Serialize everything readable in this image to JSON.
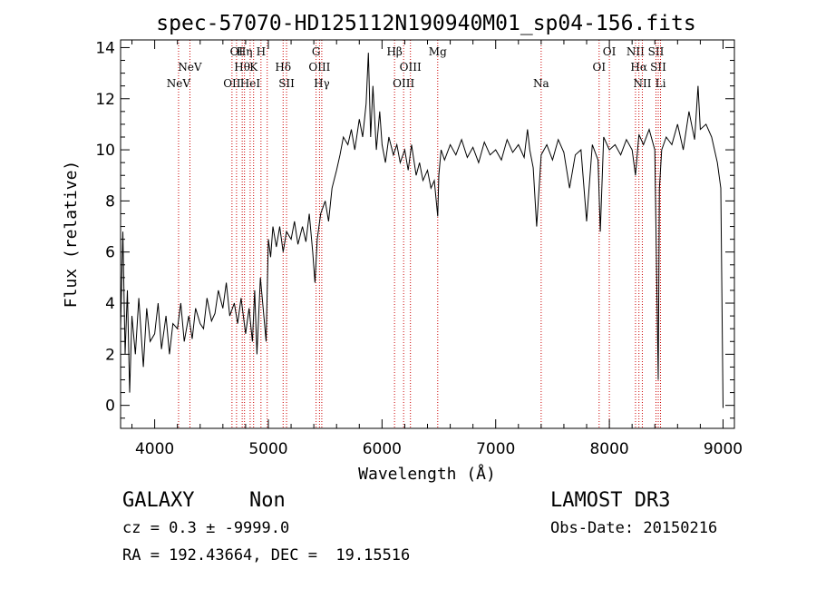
{
  "chart_data": {
    "type": "line",
    "title": "spec-57070-HD125112N190940M01_sp04-156.fits",
    "xlabel": "Wavelength (Å)",
    "ylabel": "Flux (relative)",
    "xlim": [
      3700,
      9100
    ],
    "ylim": [
      -0.9,
      14.3
    ],
    "x_ticks": [
      4000,
      5000,
      6000,
      7000,
      8000,
      9000
    ],
    "y_ticks": [
      0,
      2,
      4,
      6,
      8,
      10,
      12,
      14
    ],
    "grid": false,
    "line_color": "#000000",
    "marker_color": "#cc0000",
    "series": [
      {
        "x": [
          3700,
          3720,
          3740,
          3760,
          3780,
          3800,
          3830,
          3860,
          3900,
          3930,
          3960,
          4000,
          4030,
          4060,
          4100,
          4130,
          4160,
          4200,
          4230,
          4260,
          4300,
          4330,
          4360,
          4400,
          4430,
          4460,
          4500,
          4530,
          4560,
          4600,
          4630,
          4660,
          4700,
          4730,
          4760,
          4800,
          4830,
          4860,
          4880,
          4900,
          4930,
          4960,
          4980,
          5000,
          5020,
          5040,
          5070,
          5100,
          5130,
          5160,
          5200,
          5230,
          5260,
          5300,
          5330,
          5360,
          5390,
          5410,
          5430,
          5460,
          5500,
          5530,
          5560,
          5600,
          5630,
          5660,
          5700,
          5730,
          5760,
          5800,
          5830,
          5860,
          5880,
          5900,
          5920,
          5950,
          5980,
          6000,
          6030,
          6060,
          6100,
          6130,
          6160,
          6200,
          6230,
          6260,
          6300,
          6330,
          6360,
          6400,
          6430,
          6460,
          6490,
          6500,
          6520,
          6550,
          6600,
          6650,
          6700,
          6750,
          6800,
          6850,
          6900,
          6950,
          7000,
          7050,
          7100,
          7150,
          7200,
          7250,
          7280,
          7300,
          7330,
          7360,
          7400,
          7450,
          7500,
          7550,
          7600,
          7650,
          7700,
          7750,
          7800,
          7850,
          7900,
          7920,
          7950,
          8000,
          8050,
          8100,
          8150,
          8200,
          8230,
          8260,
          8300,
          8350,
          8400,
          8430,
          8440,
          8460,
          8500,
          8550,
          8600,
          8650,
          8700,
          8750,
          8780,
          8800,
          8850,
          8900,
          8950,
          8980,
          9000
        ],
        "y": [
          3.0,
          6.8,
          2.0,
          4.5,
          0.5,
          3.5,
          2.0,
          4.2,
          1.5,
          3.8,
          2.5,
          2.8,
          4.0,
          2.2,
          3.5,
          2.0,
          3.2,
          3.0,
          4.0,
          2.5,
          3.5,
          2.6,
          3.8,
          3.2,
          3.0,
          4.2,
          3.3,
          3.6,
          4.5,
          3.8,
          4.8,
          3.5,
          4.0,
          3.2,
          4.2,
          2.8,
          3.8,
          2.5,
          4.5,
          2.0,
          5.0,
          3.5,
          2.5,
          6.5,
          5.8,
          7.0,
          6.2,
          7.0,
          6.0,
          6.8,
          6.5,
          7.2,
          6.3,
          7.0,
          6.4,
          7.5,
          6.0,
          4.8,
          6.5,
          7.5,
          8.0,
          7.2,
          8.5,
          9.2,
          9.8,
          10.5,
          10.2,
          10.8,
          10.0,
          11.2,
          10.5,
          11.8,
          13.8,
          10.5,
          12.5,
          10.0,
          11.5,
          10.2,
          9.5,
          10.5,
          9.8,
          10.2,
          9.5,
          10.0,
          9.2,
          10.2,
          9.0,
          9.5,
          8.8,
          9.2,
          8.5,
          8.8,
          7.4,
          9.0,
          10.0,
          9.6,
          10.2,
          9.8,
          10.4,
          9.7,
          10.1,
          9.5,
          10.3,
          9.8,
          10.0,
          9.6,
          10.4,
          9.9,
          10.2,
          9.7,
          10.8,
          10.0,
          9.3,
          7.0,
          9.8,
          10.2,
          9.6,
          10.4,
          9.9,
          8.5,
          9.8,
          10.0,
          7.2,
          10.2,
          9.6,
          6.8,
          10.5,
          10.0,
          10.2,
          9.8,
          10.4,
          10.0,
          9.0,
          10.6,
          10.2,
          10.8,
          10.0,
          1.0,
          8.5,
          10.0,
          10.5,
          10.2,
          11.0,
          10.0,
          11.5,
          10.4,
          12.5,
          10.8,
          11.0,
          10.5,
          9.5,
          8.5,
          -0.1
        ]
      }
    ],
    "lines_top": [
      {
        "x": 4210,
        "label": "NeV",
        "row": 3
      },
      {
        "x": 4310,
        "label": "NeV",
        "row": 2
      },
      {
        "x": 4680,
        "label": "OII",
        "row": 3
      },
      {
        "x": 4720,
        "label": "OI",
        "row": 1
      },
      {
        "x": 4770,
        "label": "Hθ",
        "row": 2
      },
      {
        "x": 4790,
        "label": "Hη",
        "row": 1
      },
      {
        "x": 4840,
        "label": "HeI",
        "row": 3
      },
      {
        "x": 4870,
        "label": "K",
        "row": 2
      },
      {
        "x": 4935,
        "label": "H",
        "row": 1
      },
      {
        "x": 4990,
        "label": "",
        "row": 0
      },
      {
        "x": 5130,
        "label": "Hδ",
        "row": 2
      },
      {
        "x": 5160,
        "label": "SII",
        "row": 3
      },
      {
        "x": 5420,
        "label": "G",
        "row": 1
      },
      {
        "x": 5450,
        "label": "OIII",
        "row": 2
      },
      {
        "x": 5470,
        "label": "Hγ",
        "row": 3
      },
      {
        "x": 6110,
        "label": "Hβ",
        "row": 1
      },
      {
        "x": 6190,
        "label": "OIII",
        "row": 3
      },
      {
        "x": 6250,
        "label": "OIII",
        "row": 2
      },
      {
        "x": 6490,
        "label": "Mg",
        "row": 1
      },
      {
        "x": 7400,
        "label": "Na",
        "row": 3
      },
      {
        "x": 7910,
        "label": "OI",
        "row": 2
      },
      {
        "x": 8000,
        "label": "OI",
        "row": 1
      },
      {
        "x": 8230,
        "label": "NII",
        "row": 1
      },
      {
        "x": 8260,
        "label": "Hα",
        "row": 2
      },
      {
        "x": 8290,
        "label": "NII",
        "row": 3
      },
      {
        "x": 8410,
        "label": "SII",
        "row": 1
      },
      {
        "x": 8430,
        "label": "SII",
        "row": 2
      },
      {
        "x": 8450,
        "label": "Li",
        "row": 3
      }
    ]
  },
  "info": {
    "class_text": "GALAXY",
    "subclass_text": "Non",
    "survey_text": "LAMOST DR3",
    "cz_text": "cz = 0.3 ± -9999.0",
    "obsdate_text": "Obs-Date: 20150216",
    "radec_text": "RA = 192.43664, DEC =  19.15516"
  }
}
